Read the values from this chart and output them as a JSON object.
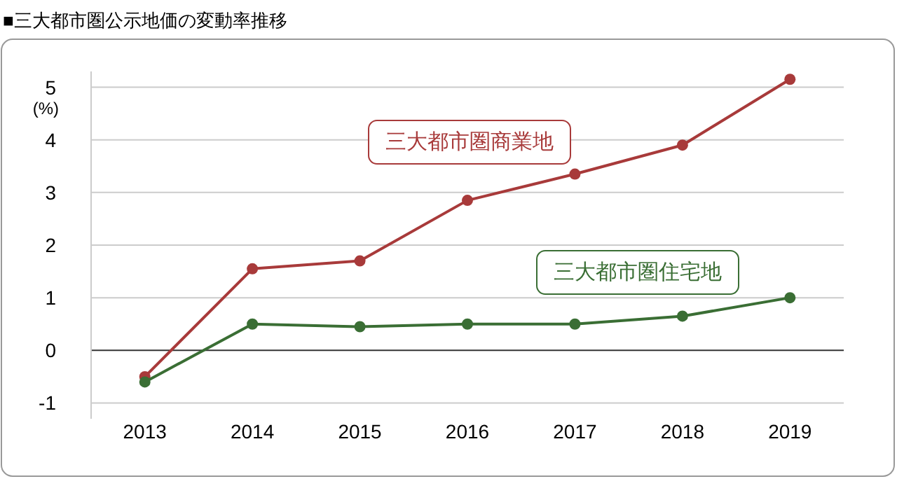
{
  "chart_data": {
    "type": "line",
    "title": "■三大都市圏公示地価の変動率推移",
    "ylabel": "(%)",
    "categories": [
      "2013",
      "2014",
      "2015",
      "2016",
      "2017",
      "2018",
      "2019"
    ],
    "ylim": [
      -1.3,
      5.3
    ],
    "yticks": [
      -1,
      0,
      1,
      2,
      3,
      4,
      5
    ],
    "grid": "y",
    "marker": "circle",
    "series": [
      {
        "name": "三大都市圏商業地",
        "color": "#a83a3a",
        "values": [
          -0.5,
          1.55,
          1.7,
          2.85,
          3.35,
          3.9,
          5.15
        ]
      },
      {
        "name": "三大都市圏住宅地",
        "color": "#3a6e34",
        "values": [
          -0.6,
          0.5,
          0.45,
          0.5,
          0.5,
          0.65,
          1.0
        ]
      }
    ]
  }
}
